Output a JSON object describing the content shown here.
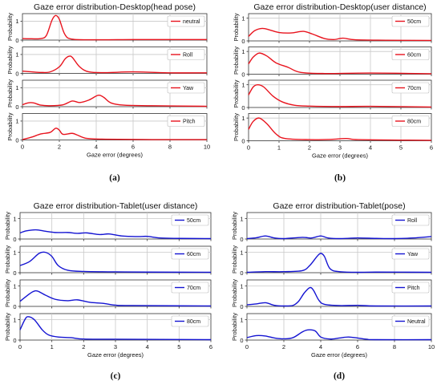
{
  "chart_data": [
    {
      "type": "line",
      "panel_label": "(a)",
      "title": "Gaze error distribution-Desktop(head pose)",
      "xlabel": "Gaze error (degrees)",
      "ylabel": "Probability",
      "xlim": [
        0,
        10
      ],
      "ylim": [
        0,
        1.4
      ],
      "xticks": [
        "0",
        "2",
        "4",
        "6",
        "8",
        "10"
      ],
      "yticks": [
        "0",
        "1"
      ],
      "grid": true,
      "legend_position": "top-right",
      "color": "#e8141e",
      "series": [
        {
          "name": "neutral",
          "points": [
            [
              0,
              0.08
            ],
            [
              0.5,
              0.07
            ],
            [
              1,
              0.08
            ],
            [
              1.3,
              0.25
            ],
            [
              1.6,
              1.05
            ],
            [
              1.8,
              1.3
            ],
            [
              2,
              1.1
            ],
            [
              2.3,
              0.3
            ],
            [
              2.7,
              0.05
            ],
            [
              4,
              0.02
            ],
            [
              6,
              0.03
            ],
            [
              8,
              0.03
            ],
            [
              10,
              0.03
            ]
          ]
        },
        {
          "name": "Roll",
          "points": [
            [
              0,
              0.12
            ],
            [
              0.5,
              0.08
            ],
            [
              1,
              0.05
            ],
            [
              1.5,
              0.08
            ],
            [
              2,
              0.35
            ],
            [
              2.3,
              0.75
            ],
            [
              2.5,
              0.9
            ],
            [
              2.7,
              0.85
            ],
            [
              3.1,
              0.35
            ],
            [
              3.6,
              0.08
            ],
            [
              4.5,
              0.04
            ],
            [
              6,
              0.08
            ],
            [
              8,
              0.03
            ],
            [
              10,
              0.03
            ]
          ]
        },
        {
          "name": "Yaw",
          "points": [
            [
              0,
              0.1
            ],
            [
              0.3,
              0.2
            ],
            [
              0.6,
              0.2
            ],
            [
              1,
              0.08
            ],
            [
              1.5,
              0.05
            ],
            [
              2.2,
              0.1
            ],
            [
              2.7,
              0.3
            ],
            [
              3.1,
              0.22
            ],
            [
              3.6,
              0.35
            ],
            [
              4.1,
              0.6
            ],
            [
              4.4,
              0.5
            ],
            [
              4.8,
              0.2
            ],
            [
              5.5,
              0.08
            ],
            [
              7,
              0.05
            ],
            [
              10,
              0.02
            ]
          ]
        },
        {
          "name": "Pitch",
          "points": [
            [
              0,
              0.02
            ],
            [
              0.5,
              0.15
            ],
            [
              1,
              0.32
            ],
            [
              1.5,
              0.4
            ],
            [
              1.8,
              0.62
            ],
            [
              2,
              0.52
            ],
            [
              2.2,
              0.3
            ],
            [
              2.7,
              0.35
            ],
            [
              3,
              0.25
            ],
            [
              3.5,
              0.08
            ],
            [
              4.5,
              0.04
            ],
            [
              7,
              0.02
            ],
            [
              10,
              0.02
            ]
          ]
        }
      ]
    },
    {
      "type": "line",
      "panel_label": "(b)",
      "title": "Gaze error distribution-Desktop(user distance)",
      "xlabel": "Gaze error (degrees)",
      "ylabel": "Probability",
      "xlim": [
        0,
        6
      ],
      "ylim": [
        0,
        1.2
      ],
      "xticks": [
        "0",
        "1",
        "2",
        "3",
        "4",
        "5",
        "6"
      ],
      "yticks": [
        "0",
        "1"
      ],
      "grid": true,
      "legend_position": "top-right",
      "color": "#e8141e",
      "series": [
        {
          "name": "50cm",
          "points": [
            [
              0,
              0.2
            ],
            [
              0.2,
              0.45
            ],
            [
              0.45,
              0.55
            ],
            [
              0.7,
              0.48
            ],
            [
              1,
              0.37
            ],
            [
              1.4,
              0.35
            ],
            [
              1.8,
              0.42
            ],
            [
              2.1,
              0.3
            ],
            [
              2.5,
              0.1
            ],
            [
              2.8,
              0.06
            ],
            [
              3.1,
              0.12
            ],
            [
              3.5,
              0.05
            ],
            [
              4.5,
              0.03
            ],
            [
              6,
              0.02
            ]
          ]
        },
        {
          "name": "60cm",
          "points": [
            [
              0,
              0.45
            ],
            [
              0.15,
              0.75
            ],
            [
              0.35,
              0.93
            ],
            [
              0.6,
              0.8
            ],
            [
              0.9,
              0.5
            ],
            [
              1.3,
              0.3
            ],
            [
              1.7,
              0.08
            ],
            [
              2.5,
              0.03
            ],
            [
              4,
              0.05
            ],
            [
              6,
              0.02
            ]
          ]
        },
        {
          "name": "70cm",
          "points": [
            [
              0,
              0.55
            ],
            [
              0.15,
              0.9
            ],
            [
              0.3,
              1.0
            ],
            [
              0.5,
              0.9
            ],
            [
              0.8,
              0.5
            ],
            [
              1.1,
              0.25
            ],
            [
              1.5,
              0.1
            ],
            [
              2,
              0.06
            ],
            [
              3,
              0.04
            ],
            [
              4,
              0.05
            ],
            [
              6,
              0.02
            ]
          ]
        },
        {
          "name": "80cm",
          "points": [
            [
              0,
              0.5
            ],
            [
              0.15,
              0.85
            ],
            [
              0.35,
              1.0
            ],
            [
              0.6,
              0.75
            ],
            [
              0.9,
              0.3
            ],
            [
              1.2,
              0.1
            ],
            [
              2,
              0.05
            ],
            [
              2.7,
              0.06
            ],
            [
              3.2,
              0.1
            ],
            [
              3.6,
              0.05
            ],
            [
              5,
              0.03
            ],
            [
              6,
              0.02
            ]
          ]
        }
      ]
    },
    {
      "type": "line",
      "panel_label": "(c)",
      "title": "Gaze error distribution-Tablet(user distance)",
      "xlabel": "Gaze error (degrees)",
      "ylabel": "Probability",
      "xlim": [
        0,
        6
      ],
      "ylim": [
        0,
        1.3
      ],
      "xticks": [
        "0",
        "1",
        "2",
        "3",
        "4",
        "5",
        "6"
      ],
      "yticks": [
        "0",
        "1"
      ],
      "grid": true,
      "legend_position": "top-right",
      "color": "#1414d2",
      "series": [
        {
          "name": "50cm",
          "points": [
            [
              0,
              0.3
            ],
            [
              0.2,
              0.4
            ],
            [
              0.5,
              0.45
            ],
            [
              0.8,
              0.38
            ],
            [
              1.1,
              0.32
            ],
            [
              1.5,
              0.32
            ],
            [
              1.8,
              0.28
            ],
            [
              2.1,
              0.3
            ],
            [
              2.5,
              0.22
            ],
            [
              2.8,
              0.25
            ],
            [
              3.2,
              0.15
            ],
            [
              3.7,
              0.12
            ],
            [
              4,
              0.13
            ],
            [
              4.4,
              0.05
            ],
            [
              5,
              0.03
            ],
            [
              6,
              0.02
            ]
          ]
        },
        {
          "name": "60cm",
          "points": [
            [
              0,
              0.35
            ],
            [
              0.3,
              0.55
            ],
            [
              0.6,
              0.95
            ],
            [
              0.8,
              1.0
            ],
            [
              1,
              0.8
            ],
            [
              1.2,
              0.35
            ],
            [
              1.5,
              0.12
            ],
            [
              2,
              0.06
            ],
            [
              3,
              0.04
            ],
            [
              4,
              0.03
            ],
            [
              6,
              0.02
            ]
          ]
        },
        {
          "name": "70cm",
          "points": [
            [
              0,
              0.25
            ],
            [
              0.2,
              0.5
            ],
            [
              0.4,
              0.72
            ],
            [
              0.55,
              0.75
            ],
            [
              0.8,
              0.55
            ],
            [
              1.1,
              0.35
            ],
            [
              1.5,
              0.28
            ],
            [
              1.8,
              0.32
            ],
            [
              2.2,
              0.2
            ],
            [
              2.6,
              0.15
            ],
            [
              3,
              0.06
            ],
            [
              3.5,
              0.04
            ],
            [
              6,
              0.02
            ]
          ]
        },
        {
          "name": "80cm",
          "points": [
            [
              0,
              0.5
            ],
            [
              0.15,
              1.0
            ],
            [
              0.25,
              1.15
            ],
            [
              0.45,
              1.0
            ],
            [
              0.7,
              0.5
            ],
            [
              0.9,
              0.25
            ],
            [
              1.2,
              0.15
            ],
            [
              1.6,
              0.12
            ],
            [
              2,
              0.05
            ],
            [
              3,
              0.04
            ],
            [
              6,
              0.02
            ]
          ]
        }
      ]
    },
    {
      "type": "line",
      "panel_label": "(d)",
      "title": "Gaze error distribution-Tablet(pose)",
      "xlabel": "Gaze error (degrees)",
      "ylabel": "Probability",
      "xlim": [
        0,
        10
      ],
      "ylim": [
        0,
        1.3
      ],
      "xticks": [
        "0",
        "2",
        "4",
        "6",
        "8",
        "10"
      ],
      "yticks": [
        "0",
        "1"
      ],
      "grid": true,
      "legend_position": "top-right",
      "color": "#1414d2",
      "series": [
        {
          "name": "Roll",
          "points": [
            [
              0,
              0.02
            ],
            [
              0.5,
              0.06
            ],
            [
              1,
              0.15
            ],
            [
              1.5,
              0.05
            ],
            [
              2,
              0.02
            ],
            [
              3,
              0.08
            ],
            [
              3.5,
              0.05
            ],
            [
              4,
              0.15
            ],
            [
              4.4,
              0.05
            ],
            [
              5,
              0.02
            ],
            [
              6,
              0.05
            ],
            [
              7,
              0.03
            ],
            [
              8,
              0.02
            ],
            [
              9,
              0.05
            ],
            [
              10,
              0.12
            ]
          ]
        },
        {
          "name": "Yaw",
          "points": [
            [
              0,
              0.02
            ],
            [
              1,
              0.05
            ],
            [
              2,
              0.05
            ],
            [
              3,
              0.1
            ],
            [
              3.4,
              0.35
            ],
            [
              3.8,
              0.8
            ],
            [
              4,
              0.95
            ],
            [
              4.2,
              0.8
            ],
            [
              4.5,
              0.2
            ],
            [
              5,
              0.05
            ],
            [
              6,
              0.02
            ],
            [
              7,
              0.03
            ],
            [
              10,
              0.02
            ]
          ]
        },
        {
          "name": "Pitch",
          "points": [
            [
              0,
              0.08
            ],
            [
              0.5,
              0.12
            ],
            [
              1,
              0.18
            ],
            [
              1.5,
              0.05
            ],
            [
              2,
              0.02
            ],
            [
              2.5,
              0.05
            ],
            [
              2.8,
              0.25
            ],
            [
              3.1,
              0.65
            ],
            [
              3.4,
              0.92
            ],
            [
              3.6,
              0.8
            ],
            [
              3.9,
              0.3
            ],
            [
              4.2,
              0.1
            ],
            [
              5,
              0.04
            ],
            [
              6,
              0.05
            ],
            [
              7,
              0.02
            ],
            [
              10,
              0.02
            ]
          ]
        },
        {
          "name": "Neutral",
          "points": [
            [
              0,
              0.12
            ],
            [
              0.5,
              0.22
            ],
            [
              1,
              0.2
            ],
            [
              1.5,
              0.1
            ],
            [
              2,
              0.06
            ],
            [
              2.5,
              0.12
            ],
            [
              3,
              0.4
            ],
            [
              3.3,
              0.5
            ],
            [
              3.7,
              0.45
            ],
            [
              4,
              0.15
            ],
            [
              4.5,
              0.05
            ],
            [
              5,
              0.1
            ],
            [
              5.5,
              0.15
            ],
            [
              6,
              0.1
            ],
            [
              6.5,
              0.04
            ],
            [
              7,
              0.02
            ],
            [
              10,
              0.02
            ]
          ]
        }
      ]
    }
  ]
}
